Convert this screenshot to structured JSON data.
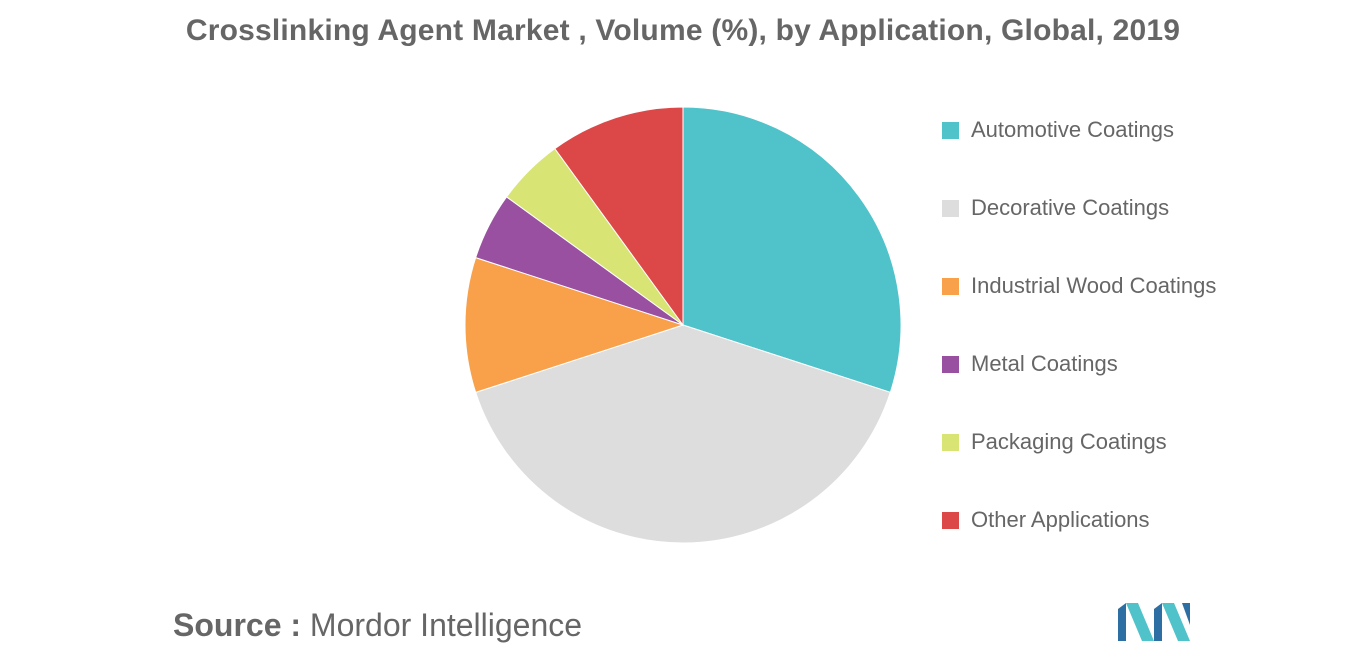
{
  "title": "Crosslinking Agent Market , Volume (%), by Application, Global, 2019",
  "source": {
    "prefix": "Source :",
    "name": "Mordor Intelligence"
  },
  "logo": {
    "icon": "mordor-intelligence-logo-icon",
    "colors": [
      "#2e6fa3",
      "#4fc3c9"
    ]
  },
  "chart_data": {
    "type": "pie",
    "title": "Crosslinking Agent Market , Volume (%), by Application, Global, 2019",
    "legend_position": "right",
    "start_angle": "12 o'clock, clockwise",
    "slices": [
      {
        "label": "Automotive Coatings",
        "value": 30,
        "color": "#4fc3c9"
      },
      {
        "label": "Decorative Coatings",
        "value": 40,
        "color": "#dddddd"
      },
      {
        "label": "Industrial Wood Coatings",
        "value": 10,
        "color": "#f9a04b"
      },
      {
        "label": "Metal Coatings",
        "value": 5,
        "color": "#9a50a0"
      },
      {
        "label": "Packaging Coatings",
        "value": 5,
        "color": "#d8e473"
      },
      {
        "label": "Other Applications",
        "value": 10,
        "color": "#dc4848"
      }
    ]
  }
}
